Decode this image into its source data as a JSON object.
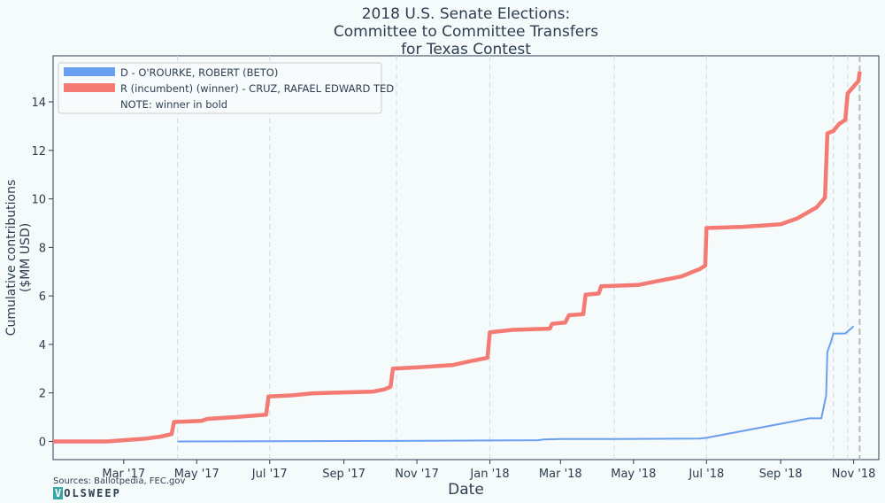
{
  "chart_data": {
    "type": "line",
    "title": [
      "2018 U.S. Senate Elections:",
      "Committee to Committee Transfers",
      "for Texas Contest"
    ],
    "xlabel": "Date",
    "ylabel": [
      "Cumulative contributions",
      "($MM USD)"
    ],
    "xlim": [
      "2017-01-01",
      "2018-11-22"
    ],
    "ylim": [
      -0.75,
      15.9
    ],
    "y_ticks": [
      0,
      2,
      4,
      6,
      8,
      10,
      12,
      14
    ],
    "x_ticks": [
      {
        "date": "2017-03-01",
        "label": "Mar '17"
      },
      {
        "date": "2017-05-01",
        "label": "May '17"
      },
      {
        "date": "2017-07-01",
        "label": "Jul '17"
      },
      {
        "date": "2017-09-01",
        "label": "Sep '17"
      },
      {
        "date": "2017-11-01",
        "label": "Nov '17"
      },
      {
        "date": "2018-01-01",
        "label": "Jan '18"
      },
      {
        "date": "2018-03-01",
        "label": "Mar '18"
      },
      {
        "date": "2018-05-01",
        "label": "May '18"
      },
      {
        "date": "2018-07-01",
        "label": "Jul '18"
      },
      {
        "date": "2018-09-01",
        "label": "Sep '18"
      },
      {
        "date": "2018-11-01",
        "label": "Nov '18"
      }
    ],
    "vertical_gridlines": [
      "2017-04-15",
      "2017-07-01",
      "2017-10-15",
      "2018-01-01",
      "2018-04-15",
      "2018-07-01",
      "2018-10-15",
      "2018-10-27"
    ],
    "election_day_line": "2018-11-06",
    "grid": true,
    "legend_position": "top-left",
    "legend_note": "NOTE: winner in bold",
    "series": [
      {
        "name": "D - O'ROURKE, ROBERT (BETO)",
        "color": "#6a9ff0",
        "bold": false,
        "points": [
          [
            "2017-04-15",
            0.0
          ],
          [
            "2017-07-01",
            0.01
          ],
          [
            "2017-10-15",
            0.02
          ],
          [
            "2018-01-01",
            0.04
          ],
          [
            "2018-02-10",
            0.05
          ],
          [
            "2018-02-15",
            0.08
          ],
          [
            "2018-03-01",
            0.1
          ],
          [
            "2018-04-15",
            0.1
          ],
          [
            "2018-06-25",
            0.12
          ],
          [
            "2018-07-01",
            0.15
          ],
          [
            "2018-09-25",
            0.95
          ],
          [
            "2018-10-05",
            0.95
          ],
          [
            "2018-10-09",
            1.9
          ],
          [
            "2018-10-10",
            3.7
          ],
          [
            "2018-10-13",
            4.1
          ],
          [
            "2018-10-15",
            4.45
          ],
          [
            "2018-10-25",
            4.45
          ],
          [
            "2018-11-01",
            4.75
          ]
        ]
      },
      {
        "name": "R (incumbent) (winner) - CRUZ, RAFAEL EDWARD  TED",
        "color": "#f47b74",
        "bold": true,
        "points": [
          [
            "2017-01-01",
            0.0
          ],
          [
            "2017-02-15",
            0.0
          ],
          [
            "2017-03-01",
            0.05
          ],
          [
            "2017-03-20",
            0.12
          ],
          [
            "2017-04-01",
            0.2
          ],
          [
            "2017-04-10",
            0.3
          ],
          [
            "2017-04-12",
            0.8
          ],
          [
            "2017-05-05",
            0.85
          ],
          [
            "2017-05-10",
            0.93
          ],
          [
            "2017-06-01",
            1.0
          ],
          [
            "2017-06-28",
            1.1
          ],
          [
            "2017-06-30",
            1.85
          ],
          [
            "2017-07-20",
            1.9
          ],
          [
            "2017-08-05",
            1.98
          ],
          [
            "2017-09-01",
            2.02
          ],
          [
            "2017-09-25",
            2.05
          ],
          [
            "2017-10-05",
            2.15
          ],
          [
            "2017-10-10",
            2.25
          ],
          [
            "2017-10-12",
            3.0
          ],
          [
            "2017-11-01",
            3.05
          ],
          [
            "2017-12-01",
            3.15
          ],
          [
            "2017-12-15",
            3.3
          ],
          [
            "2017-12-30",
            3.45
          ],
          [
            "2018-01-01",
            4.5
          ],
          [
            "2018-01-20",
            4.6
          ],
          [
            "2018-02-20",
            4.65
          ],
          [
            "2018-02-22",
            4.85
          ],
          [
            "2018-03-05",
            4.9
          ],
          [
            "2018-03-08",
            5.2
          ],
          [
            "2018-03-20",
            5.25
          ],
          [
            "2018-03-22",
            6.05
          ],
          [
            "2018-04-02",
            6.1
          ],
          [
            "2018-04-04",
            6.4
          ],
          [
            "2018-05-05",
            6.45
          ],
          [
            "2018-05-20",
            6.6
          ],
          [
            "2018-06-10",
            6.8
          ],
          [
            "2018-06-25",
            7.1
          ],
          [
            "2018-06-30",
            7.25
          ],
          [
            "2018-07-01",
            8.8
          ],
          [
            "2018-08-01",
            8.85
          ],
          [
            "2018-09-01",
            8.95
          ],
          [
            "2018-09-15",
            9.2
          ],
          [
            "2018-10-01",
            9.65
          ],
          [
            "2018-10-08",
            10.05
          ],
          [
            "2018-10-10",
            12.7
          ],
          [
            "2018-10-15",
            12.8
          ],
          [
            "2018-10-20",
            13.1
          ],
          [
            "2018-10-25",
            13.25
          ],
          [
            "2018-10-27",
            14.35
          ],
          [
            "2018-11-03",
            14.75
          ],
          [
            "2018-11-05",
            14.85
          ],
          [
            "2018-11-06",
            15.25
          ]
        ]
      }
    ]
  },
  "footer": {
    "source": "Sources: Ballotpedia, FEC.gov",
    "logo_box": "V",
    "logo_rest": "OLSWEEP"
  }
}
